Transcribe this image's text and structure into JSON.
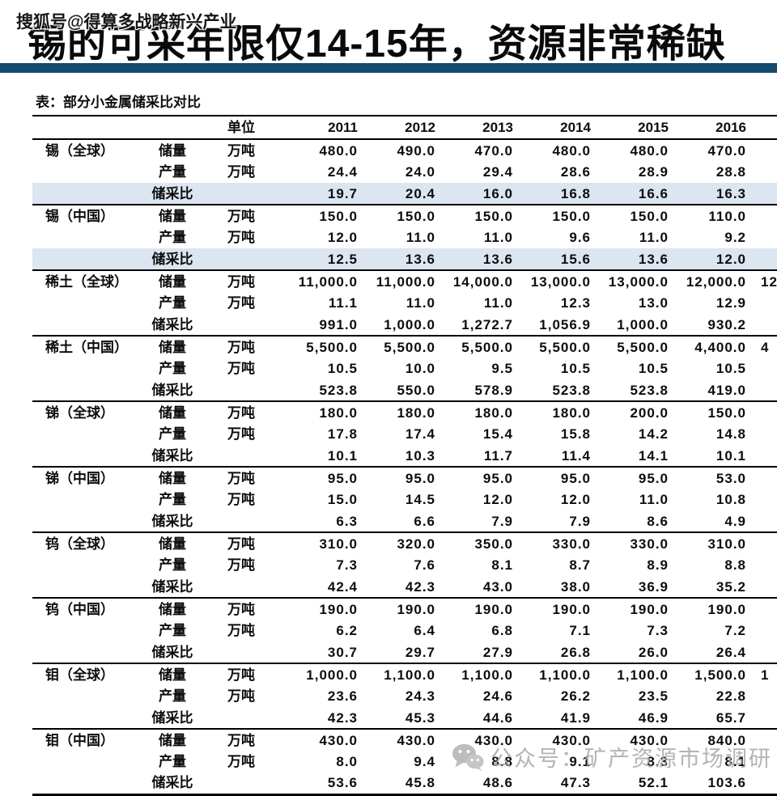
{
  "colors": {
    "accent_bar": "#154A70",
    "highlight_row": "#DCE6F1",
    "watermark_gray": "#A8A8A8"
  },
  "watermark_top": {
    "text": "搜狐号@得算多战略新兴产业"
  },
  "header": {
    "title": "锡的可采年限仅14-15年，资源非常稀缺"
  },
  "watermark_bottom": {
    "icon": "wechat-icon",
    "text": "公众号：矿产资源市场调研"
  },
  "table": {
    "caption": "表：部分小金属储采比对比",
    "unit_header": "单位",
    "years": [
      "2011",
      "2012",
      "2013",
      "2014",
      "2015",
      "2016"
    ],
    "row_labels": {
      "reserves": "储量",
      "production": "产量",
      "ratio": "储采比"
    },
    "unit_label": "万吨",
    "groups": [
      {
        "name": "锡（全球）",
        "rows": [
          {
            "label": "储量",
            "unit": "万吨",
            "values": [
              "480.0",
              "490.0",
              "470.0",
              "480.0",
              "480.0",
              "470.0"
            ],
            "overflow": ""
          },
          {
            "label": "产量",
            "unit": "万吨",
            "values": [
              "24.4",
              "24.0",
              "29.4",
              "28.6",
              "28.9",
              "28.8"
            ],
            "overflow": ""
          },
          {
            "label": "储采比",
            "unit": "",
            "values": [
              "19.7",
              "20.4",
              "16.0",
              "16.8",
              "16.6",
              "16.3"
            ],
            "overflow": "",
            "highlight": true
          }
        ]
      },
      {
        "name": "锡（中国）",
        "rows": [
          {
            "label": "储量",
            "unit": "万吨",
            "values": [
              "150.0",
              "150.0",
              "150.0",
              "150.0",
              "150.0",
              "110.0"
            ],
            "overflow": ""
          },
          {
            "label": "产量",
            "unit": "万吨",
            "values": [
              "12.0",
              "11.0",
              "11.0",
              "9.6",
              "11.0",
              "9.2"
            ],
            "overflow": ""
          },
          {
            "label": "储采比",
            "unit": "",
            "values": [
              "12.5",
              "13.6",
              "13.6",
              "15.6",
              "13.6",
              "12.0"
            ],
            "overflow": "",
            "highlight": true
          }
        ]
      },
      {
        "name": "稀土（全球）",
        "rows": [
          {
            "label": "储量",
            "unit": "万吨",
            "values": [
              "11,000.0",
              "11,000.0",
              "14,000.0",
              "13,000.0",
              "13,000.0",
              "12,000.0"
            ],
            "overflow": "12"
          },
          {
            "label": "产量",
            "unit": "万吨",
            "values": [
              "11.1",
              "11.0",
              "11.0",
              "12.3",
              "13.0",
              "12.9"
            ],
            "overflow": ""
          },
          {
            "label": "储采比",
            "unit": "",
            "values": [
              "991.0",
              "1,000.0",
              "1,272.7",
              "1,056.9",
              "1,000.0",
              "930.2"
            ],
            "overflow": ""
          }
        ]
      },
      {
        "name": "稀土（中国）",
        "rows": [
          {
            "label": "储量",
            "unit": "万吨",
            "values": [
              "5,500.0",
              "5,500.0",
              "5,500.0",
              "5,500.0",
              "5,500.0",
              "4,400.0"
            ],
            "overflow": "4"
          },
          {
            "label": "产量",
            "unit": "万吨",
            "values": [
              "10.5",
              "10.0",
              "9.5",
              "10.5",
              "10.5",
              "10.5"
            ],
            "overflow": ""
          },
          {
            "label": "储采比",
            "unit": "",
            "values": [
              "523.8",
              "550.0",
              "578.9",
              "523.8",
              "523.8",
              "419.0"
            ],
            "overflow": ""
          }
        ]
      },
      {
        "name": "锑（全球）",
        "rows": [
          {
            "label": "储量",
            "unit": "万吨",
            "values": [
              "180.0",
              "180.0",
              "180.0",
              "180.0",
              "200.0",
              "150.0"
            ],
            "overflow": ""
          },
          {
            "label": "产量",
            "unit": "万吨",
            "values": [
              "17.8",
              "17.4",
              "15.4",
              "15.8",
              "14.2",
              "14.8"
            ],
            "overflow": ""
          },
          {
            "label": "储采比",
            "unit": "",
            "values": [
              "10.1",
              "10.3",
              "11.7",
              "11.4",
              "14.1",
              "10.1"
            ],
            "overflow": ""
          }
        ]
      },
      {
        "name": "锑（中国）",
        "rows": [
          {
            "label": "储量",
            "unit": "万吨",
            "values": [
              "95.0",
              "95.0",
              "95.0",
              "95.0",
              "95.0",
              "53.0"
            ],
            "overflow": ""
          },
          {
            "label": "产量",
            "unit": "万吨",
            "values": [
              "15.0",
              "14.5",
              "12.0",
              "12.0",
              "11.0",
              "10.8"
            ],
            "overflow": ""
          },
          {
            "label": "储采比",
            "unit": "",
            "values": [
              "6.3",
              "6.6",
              "7.9",
              "7.9",
              "8.6",
              "4.9"
            ],
            "overflow": ""
          }
        ]
      },
      {
        "name": "钨（全球）",
        "rows": [
          {
            "label": "储量",
            "unit": "万吨",
            "values": [
              "310.0",
              "320.0",
              "350.0",
              "330.0",
              "330.0",
              "310.0"
            ],
            "overflow": ""
          },
          {
            "label": "产量",
            "unit": "万吨",
            "values": [
              "7.3",
              "7.6",
              "8.1",
              "8.7",
              "8.9",
              "8.8"
            ],
            "overflow": ""
          },
          {
            "label": "储采比",
            "unit": "",
            "values": [
              "42.4",
              "42.3",
              "43.0",
              "38.0",
              "36.9",
              "35.2"
            ],
            "overflow": ""
          }
        ]
      },
      {
        "name": "钨（中国）",
        "rows": [
          {
            "label": "储量",
            "unit": "万吨",
            "values": [
              "190.0",
              "190.0",
              "190.0",
              "190.0",
              "190.0",
              "190.0"
            ],
            "overflow": ""
          },
          {
            "label": "产量",
            "unit": "万吨",
            "values": [
              "6.2",
              "6.4",
              "6.8",
              "7.1",
              "7.3",
              "7.2"
            ],
            "overflow": ""
          },
          {
            "label": "储采比",
            "unit": "",
            "values": [
              "30.7",
              "29.7",
              "27.9",
              "26.8",
              "26.0",
              "26.4"
            ],
            "overflow": ""
          }
        ]
      },
      {
        "name": "钼（全球）",
        "rows": [
          {
            "label": "储量",
            "unit": "万吨",
            "values": [
              "1,000.0",
              "1,100.0",
              "1,100.0",
              "1,100.0",
              "1,100.0",
              "1,500.0"
            ],
            "overflow": "1"
          },
          {
            "label": "产量",
            "unit": "万吨",
            "values": [
              "23.6",
              "24.3",
              "24.6",
              "26.2",
              "23.5",
              "22.8"
            ],
            "overflow": ""
          },
          {
            "label": "储采比",
            "unit": "",
            "values": [
              "42.3",
              "45.3",
              "44.6",
              "41.9",
              "46.9",
              "65.7"
            ],
            "overflow": ""
          }
        ]
      },
      {
        "name": "钼（中国）",
        "rows": [
          {
            "label": "储量",
            "unit": "万吨",
            "values": [
              "430.0",
              "430.0",
              "430.0",
              "430.0",
              "430.0",
              "840.0"
            ],
            "overflow": ""
          },
          {
            "label": "产量",
            "unit": "万吨",
            "values": [
              "8.0",
              "9.4",
              "8.8",
              "9.1",
              "8.3",
              "8.1"
            ],
            "overflow": ""
          },
          {
            "label": "储采比",
            "unit": "",
            "values": [
              "53.6",
              "45.8",
              "48.6",
              "47.3",
              "52.1",
              "103.6"
            ],
            "overflow": ""
          }
        ]
      }
    ]
  }
}
